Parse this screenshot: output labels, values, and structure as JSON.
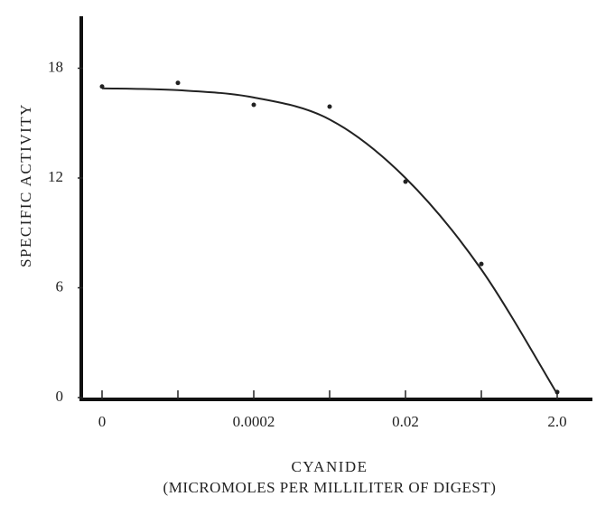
{
  "chart_data": {
    "type": "line",
    "x_label": "CYANIDE",
    "x_label_2": "(MICROMOLES PER MILLILITER OF DIGEST)",
    "y_label": "SPECIFIC ACTIVITY",
    "categories": [
      "0",
      null,
      "0.0002",
      null,
      "0.02",
      null,
      "2.0"
    ],
    "series": [
      {
        "mode": "markers",
        "color": "#222222",
        "values": [
          17.0,
          17.2,
          16.0,
          15.9,
          11.8,
          7.3,
          0.3
        ]
      },
      {
        "mode": "line",
        "color": "#222222",
        "values": [
          16.9,
          16.8,
          16.4,
          15.2,
          12.0,
          7.0,
          0.2
        ]
      }
    ],
    "ylim": [
      0,
      21
    ],
    "yticks": [
      0,
      6,
      12,
      18
    ],
    "grid": false
  }
}
